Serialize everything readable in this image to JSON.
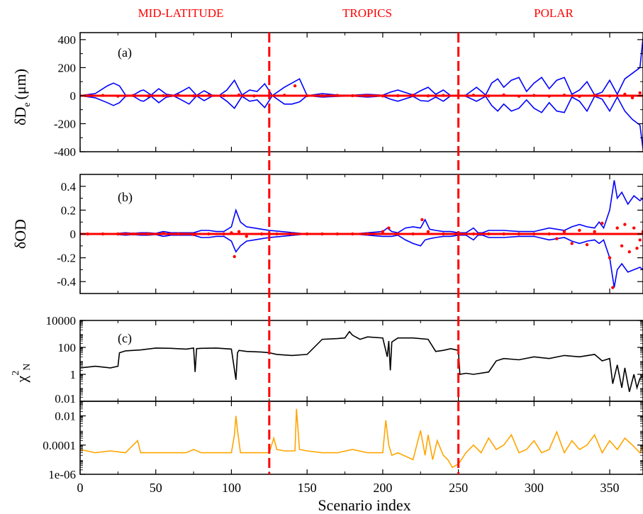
{
  "regions": [
    {
      "label": "MID-LATITUDE",
      "x_start": 0,
      "x_end": 125
    },
    {
      "label": "TROPICS",
      "x_start": 125,
      "x_end": 250
    },
    {
      "label": "POLAR",
      "x_start": 250,
      "x_end": 372
    }
  ],
  "colors": {
    "region_label": "#ff0000",
    "divider": "#ff0000",
    "uncertainty": "#0000ff",
    "points": "#ff0000",
    "chi2_line": "#000000",
    "residual_line": "#ffa500",
    "axis": "#000000"
  },
  "chart_data": [
    {
      "type": "line",
      "panel_label": "(a)",
      "title": "",
      "xlabel": "",
      "ylabel": "δD",
      "ylabel_sub": "e",
      "ylabel_unit": "(μm)",
      "xlim": [
        0,
        372
      ],
      "ylim": [
        -400,
        450
      ],
      "yticks": [
        -400,
        -200,
        0,
        200,
        400
      ],
      "yticklabels": [
        "-400",
        "-200",
        "0",
        "200",
        "400"
      ],
      "series": [
        {
          "role": "envelope",
          "x": [
            0,
            10,
            18,
            22,
            26,
            30,
            35,
            40,
            42,
            47,
            52,
            57,
            62,
            67,
            72,
            77,
            82,
            87,
            92,
            97,
            102,
            107,
            112,
            117,
            122,
            127,
            135,
            140,
            145,
            150,
            160,
            170,
            180,
            190,
            200,
            205,
            210,
            220,
            225,
            230,
            235,
            240,
            245,
            250,
            255,
            262,
            268,
            272,
            276,
            280,
            285,
            290,
            295,
            300,
            305,
            310,
            315,
            320,
            325,
            330,
            335,
            340,
            345,
            350,
            355,
            360,
            365,
            370,
            372
          ],
          "upper": [
            0,
            15,
            70,
            90,
            70,
            5,
            3,
            35,
            40,
            5,
            50,
            10,
            3,
            30,
            60,
            2,
            35,
            5,
            2,
            40,
            110,
            5,
            40,
            30,
            85,
            0,
            60,
            90,
            120,
            0,
            15,
            5,
            3,
            10,
            3,
            25,
            40,
            5,
            35,
            60,
            10,
            40,
            0,
            0,
            5,
            60,
            5,
            90,
            120,
            60,
            110,
            130,
            30,
            90,
            130,
            50,
            110,
            130,
            10,
            40,
            100,
            5,
            25,
            110,
            10,
            120,
            160,
            200,
            410
          ],
          "lower": [
            0,
            -15,
            -50,
            -70,
            -50,
            -5,
            -3,
            -35,
            -40,
            -5,
            -50,
            -10,
            -3,
            -30,
            -60,
            -2,
            -35,
            -5,
            -2,
            -40,
            -90,
            -5,
            -40,
            -30,
            -85,
            0,
            -60,
            -60,
            -45,
            0,
            -10,
            -5,
            -3,
            -10,
            -3,
            -25,
            -40,
            -5,
            -35,
            -40,
            -10,
            -40,
            0,
            0,
            -5,
            -40,
            -5,
            -70,
            -110,
            -60,
            -110,
            -90,
            -30,
            -90,
            -120,
            -50,
            -110,
            -120,
            -10,
            -40,
            -110,
            -5,
            -25,
            -110,
            -10,
            -110,
            -170,
            -210,
            -380
          ]
        },
        {
          "role": "points",
          "x": [
            5,
            15,
            25,
            35,
            45,
            55,
            65,
            75,
            85,
            95,
            105,
            115,
            125,
            135,
            142,
            150,
            160,
            170,
            180,
            190,
            200,
            210,
            220,
            230,
            240,
            250,
            260,
            270,
            280,
            290,
            300,
            310,
            320,
            330,
            340,
            350,
            360,
            365,
            370
          ],
          "y": [
            0,
            2,
            -3,
            1,
            -2,
            0,
            3,
            -1,
            2,
            0,
            5,
            -2,
            0,
            3,
            70,
            0,
            -1,
            2,
            0,
            1,
            -2,
            0,
            3,
            -1,
            2,
            0,
            3,
            -2,
            5,
            -4,
            2,
            -3,
            4,
            -5,
            3,
            -2,
            10,
            -15,
            20
          ]
        }
      ]
    },
    {
      "type": "line",
      "panel_label": "(b)",
      "title": "",
      "xlabel": "",
      "ylabel": "δOD",
      "xlim": [
        0,
        372
      ],
      "ylim": [
        -0.5,
        0.5
      ],
      "yticks": [
        -0.4,
        -0.2,
        0,
        0.2,
        0.4
      ],
      "yticklabels": [
        "-0.4",
        "-0.2",
        "0",
        "0.2",
        "0.4"
      ],
      "series": [
        {
          "role": "envelope",
          "x": [
            0,
            20,
            30,
            35,
            40,
            45,
            50,
            55,
            60,
            70,
            75,
            80,
            85,
            90,
            95,
            100,
            103,
            106,
            110,
            115,
            120,
            125,
            150,
            180,
            190,
            200,
            203,
            206,
            210,
            215,
            220,
            225,
            228,
            231,
            235,
            240,
            245,
            250,
            255,
            260,
            263,
            266,
            270,
            280,
            290,
            300,
            310,
            320,
            325,
            330,
            335,
            340,
            343,
            346,
            350,
            353,
            355,
            358,
            362,
            366,
            370,
            372
          ],
          "upper": [
            0,
            0,
            0.01,
            0.005,
            0.01,
            0.01,
            0.005,
            0.02,
            0.01,
            0.01,
            0.01,
            0.03,
            0.03,
            0.02,
            0.02,
            0.06,
            0.2,
            0.1,
            0.06,
            0.05,
            0.04,
            0.03,
            0,
            0,
            0.01,
            0.02,
            0.05,
            0.02,
            0.01,
            0.05,
            0.06,
            0.05,
            0.12,
            0.04,
            0.03,
            0.02,
            0.02,
            0.01,
            0.01,
            0.05,
            0.01,
            0.01,
            0.03,
            0.03,
            0.02,
            0.02,
            0.05,
            0.03,
            0.06,
            0.08,
            0.06,
            0.05,
            0.1,
            0.05,
            0.2,
            0.45,
            0.3,
            0.35,
            0.25,
            0.32,
            0.28,
            0.3
          ],
          "lower": [
            0,
            0,
            -0.01,
            -0.005,
            -0.01,
            -0.01,
            -0.005,
            -0.02,
            -0.01,
            -0.01,
            -0.01,
            -0.03,
            -0.03,
            -0.02,
            -0.02,
            -0.06,
            -0.15,
            -0.1,
            -0.06,
            -0.05,
            -0.04,
            -0.03,
            0,
            0,
            -0.01,
            -0.02,
            -0.02,
            -0.02,
            -0.01,
            -0.05,
            -0.08,
            -0.1,
            -0.05,
            -0.04,
            -0.03,
            -0.02,
            -0.02,
            -0.01,
            -0.01,
            -0.05,
            -0.01,
            -0.01,
            -0.03,
            -0.03,
            -0.02,
            -0.02,
            -0.05,
            -0.03,
            -0.06,
            -0.08,
            -0.06,
            -0.05,
            -0.08,
            -0.05,
            -0.2,
            -0.45,
            -0.3,
            -0.25,
            -0.32,
            -0.3,
            -0.28,
            -0.3
          ]
        },
        {
          "role": "points",
          "x": [
            5,
            15,
            25,
            35,
            45,
            55,
            65,
            75,
            85,
            95,
            100,
            102,
            105,
            110,
            120,
            130,
            140,
            150,
            160,
            170,
            180,
            190,
            200,
            204,
            210,
            220,
            226,
            230,
            240,
            250,
            260,
            270,
            280,
            290,
            300,
            310,
            315,
            320,
            325,
            330,
            335,
            340,
            345,
            350,
            352,
            355,
            358,
            360,
            363,
            366,
            368,
            370,
            372
          ],
          "y": [
            0,
            0,
            0,
            0,
            0,
            0.005,
            0,
            -0.005,
            0,
            0,
            0.01,
            -0.19,
            0.02,
            -0.02,
            0,
            0,
            0,
            0,
            0,
            0,
            0,
            0,
            0.02,
            0.05,
            0,
            0,
            0.12,
            0.02,
            0,
            0,
            0,
            0,
            0,
            0,
            0,
            0,
            -0.04,
            0.02,
            -0.08,
            0.03,
            -0.09,
            0.02,
            0.09,
            -0.2,
            -0.45,
            0.05,
            -0.1,
            0.08,
            -0.15,
            0.05,
            -0.12,
            -0.05,
            0.02
          ]
        }
      ]
    },
    {
      "type": "line",
      "panel_label": "(c)",
      "title": "",
      "xlabel": "",
      "ylabel": "χ",
      "ylabel_sup": "2",
      "ylabel_sub": "N",
      "yscale": "log",
      "xlim": [
        0,
        372
      ],
      "ylim": [
        0.01,
        10000
      ],
      "yticks": [
        0.01,
        1,
        100,
        10000
      ],
      "yticklabels": [
        "0.01",
        "1",
        "100",
        "10000"
      ],
      "series": [
        {
          "x": [
            0,
            10,
            20,
            25,
            26,
            30,
            40,
            50,
            60,
            70,
            75,
            76,
            77,
            80,
            90,
            100,
            103,
            104,
            105,
            110,
            120,
            125,
            130,
            140,
            150,
            160,
            170,
            175,
            178,
            180,
            185,
            190,
            200,
            203,
            204,
            205,
            206,
            210,
            220,
            230,
            235,
            240,
            245,
            250,
            251,
            255,
            260,
            270,
            275,
            280,
            290,
            300,
            310,
            320,
            330,
            340,
            345,
            350,
            352,
            355,
            358,
            360,
            363,
            366,
            368,
            370,
            372
          ],
          "y": [
            3,
            4,
            3,
            4,
            40,
            55,
            65,
            90,
            85,
            75,
            90,
            1.5,
            80,
            85,
            90,
            75,
            0.4,
            40,
            60,
            50,
            45,
            40,
            30,
            25,
            30,
            400,
            450,
            500,
            1500,
            800,
            400,
            600,
            500,
            20,
            300,
            2,
            250,
            500,
            500,
            400,
            50,
            60,
            80,
            60,
            1,
            1.2,
            1,
            1.5,
            10,
            15,
            12,
            20,
            15,
            25,
            20,
            30,
            10,
            15,
            0.2,
            5,
            0.1,
            3,
            0.05,
            1,
            0.1,
            0.5,
            0.8
          ]
        }
      ]
    },
    {
      "type": "line",
      "title": "",
      "xlabel": "Scenario index",
      "ylabel": "",
      "yscale": "log",
      "xlim": [
        0,
        372
      ],
      "ylim": [
        1e-06,
        0.1
      ],
      "yticks": [
        1e-06,
        0.0001,
        0.01
      ],
      "yticklabels": [
        "1e-06",
        "0.0001",
        "0.01"
      ],
      "xticks": [
        0,
        50,
        100,
        150,
        200,
        250,
        300,
        350
      ],
      "xticklabels": [
        "0",
        "50",
        "100",
        "150",
        "200",
        "250",
        "300",
        "350"
      ],
      "series": [
        {
          "x": [
            0,
            10,
            20,
            30,
            38,
            40,
            50,
            60,
            70,
            75,
            80,
            90,
            100,
            102,
            103,
            104,
            106,
            110,
            120,
            125,
            128,
            130,
            135,
            140,
            142,
            143,
            145,
            150,
            160,
            170,
            180,
            190,
            200,
            202,
            204,
            206,
            210,
            220,
            225,
            228,
            230,
            233,
            236,
            240,
            243,
            246,
            250,
            255,
            260,
            265,
            270,
            275,
            280,
            285,
            290,
            295,
            300,
            305,
            310,
            315,
            320,
            325,
            330,
            335,
            340,
            345,
            350,
            355,
            360,
            365,
            370,
            372
          ],
          "y": [
            5e-05,
            3e-05,
            4e-05,
            3e-05,
            0.0002,
            3e-05,
            3e-05,
            3e-05,
            3e-05,
            5e-05,
            3e-05,
            3e-05,
            3e-05,
            0.0005,
            0.01,
            0.001,
            3e-05,
            3e-05,
            3e-05,
            3e-05,
            0.0003,
            5e-05,
            4e-05,
            4e-05,
            4e-05,
            0.03,
            5e-05,
            4e-05,
            3e-05,
            3e-05,
            5e-05,
            3e-05,
            3e-05,
            0.005,
            0.0001,
            2e-05,
            3e-05,
            1e-05,
            0.001,
            2e-05,
            0.0005,
            1e-05,
            0.0002,
            2e-05,
            1e-05,
            3e-06,
            5e-06,
            3e-05,
            0.0001,
            3e-05,
            0.0003,
            5e-05,
            0.0001,
            0.0005,
            3e-05,
            5e-05,
            0.0002,
            3e-05,
            5e-05,
            0.0008,
            3e-05,
            0.0002,
            5e-05,
            0.0001,
            0.0005,
            3e-05,
            0.0002,
            5e-05,
            0.0003,
            0.0001,
            3e-05,
            0.0001
          ]
        }
      ]
    }
  ]
}
